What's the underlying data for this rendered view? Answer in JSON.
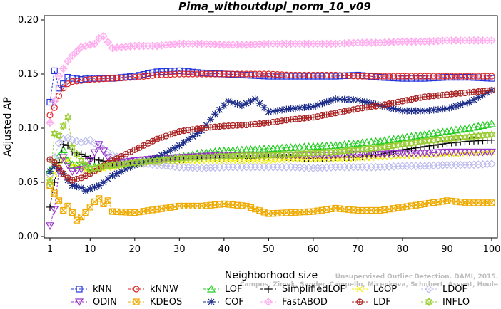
{
  "chart_data": {
    "type": "line",
    "title": "Pima_withoutdupl_norm_10_v09",
    "xlabel": "Neighborhood size",
    "ylabel": "Adjusted AP",
    "xlim": [
      1,
      100
    ],
    "ylim": [
      0.0,
      0.2
    ],
    "x_ticks": [
      "1",
      "10",
      "20",
      "30",
      "40",
      "50",
      "60",
      "70",
      "80",
      "90",
      "100"
    ],
    "y_ticks": [
      "0.00",
      "0.05",
      "0.10",
      "0.15",
      "0.20"
    ],
    "grid": false,
    "legend_position": "bottom",
    "watermark_line1": "Unsupervised Outlier Detection. DAMI, 2015.",
    "watermark_line2": "Campos, Zimek, Sander, Campello, Micenkova, Schubert, Assent, Houle",
    "series": [
      {
        "name": "kNN",
        "color": "#2233dd",
        "marker": "square",
        "x": [
          1,
          2,
          3,
          4,
          5,
          6,
          8,
          10,
          15,
          20,
          25,
          30,
          35,
          40,
          45,
          50,
          55,
          60,
          65,
          70,
          75,
          80,
          85,
          90,
          95,
          100
        ],
        "values": [
          0.124,
          0.153,
          0.137,
          0.141,
          0.147,
          0.146,
          0.145,
          0.146,
          0.146,
          0.148,
          0.152,
          0.153,
          0.151,
          0.15,
          0.149,
          0.148,
          0.148,
          0.148,
          0.148,
          0.149,
          0.147,
          0.146,
          0.146,
          0.147,
          0.147,
          0.146
        ]
      },
      {
        "name": "kNNW",
        "color": "#dd2222",
        "marker": "circle",
        "x": [
          1,
          2,
          3,
          4,
          5,
          6,
          8,
          10,
          15,
          20,
          25,
          30,
          35,
          40,
          45,
          50,
          55,
          60,
          65,
          70,
          75,
          80,
          85,
          90,
          95,
          100
        ],
        "values": [
          0.112,
          0.119,
          0.13,
          0.137,
          0.141,
          0.143,
          0.144,
          0.145,
          0.146,
          0.147,
          0.149,
          0.15,
          0.15,
          0.15,
          0.15,
          0.15,
          0.149,
          0.149,
          0.149,
          0.148,
          0.148,
          0.148,
          0.148,
          0.148,
          0.148,
          0.148
        ]
      },
      {
        "name": "LOF",
        "color": "#22cc22",
        "marker": "triangle-up",
        "x": [
          1,
          2,
          3,
          4,
          5,
          6,
          8,
          10,
          15,
          20,
          25,
          30,
          35,
          40,
          45,
          50,
          55,
          60,
          65,
          70,
          75,
          80,
          85,
          90,
          95,
          100
        ],
        "values": [
          0.061,
          0.065,
          0.074,
          0.08,
          0.07,
          0.066,
          0.065,
          0.064,
          0.066,
          0.068,
          0.071,
          0.073,
          0.077,
          0.079,
          0.08,
          0.081,
          0.082,
          0.083,
          0.084,
          0.086,
          0.088,
          0.091,
          0.094,
          0.097,
          0.1,
          0.104
        ]
      },
      {
        "name": "SimplifiedLOF",
        "color": "#000000",
        "marker": "plus",
        "x": [
          1,
          2,
          3,
          4,
          5,
          6,
          8,
          10,
          15,
          20,
          25,
          30,
          35,
          40,
          45,
          50,
          55,
          60,
          65,
          70,
          75,
          80,
          85,
          90,
          95,
          100
        ],
        "values": [
          0.027,
          0.05,
          0.068,
          0.085,
          0.084,
          0.078,
          0.076,
          0.072,
          0.068,
          0.068,
          0.07,
          0.071,
          0.072,
          0.072,
          0.072,
          0.073,
          0.073,
          0.072,
          0.073,
          0.073,
          0.076,
          0.08,
          0.083,
          0.086,
          0.088,
          0.089
        ]
      },
      {
        "name": "LoOP",
        "color": "#eeee00",
        "marker": "x",
        "x": [
          1,
          2,
          3,
          4,
          5,
          6,
          8,
          10,
          15,
          20,
          25,
          30,
          35,
          40,
          45,
          50,
          55,
          60,
          65,
          70,
          75,
          80,
          85,
          90,
          95,
          100
        ],
        "values": [
          0.052,
          0.058,
          0.066,
          0.072,
          0.07,
          0.066,
          0.063,
          0.06,
          0.064,
          0.066,
          0.068,
          0.069,
          0.07,
          0.07,
          0.07,
          0.07,
          0.071,
          0.071,
          0.071,
          0.072,
          0.073,
          0.074,
          0.075,
          0.076,
          0.077,
          0.078
        ]
      },
      {
        "name": "LDOF",
        "color": "#bbbbee",
        "marker": "diamond",
        "x": [
          1,
          2,
          3,
          4,
          5,
          6,
          8,
          10,
          15,
          20,
          25,
          30,
          35,
          40,
          45,
          50,
          55,
          60,
          65,
          70,
          75,
          80,
          85,
          90,
          95,
          100
        ],
        "values": [
          0.057,
          0.073,
          0.086,
          0.09,
          0.091,
          0.089,
          0.087,
          0.089,
          0.075,
          0.068,
          0.066,
          0.064,
          0.063,
          0.064,
          0.064,
          0.064,
          0.064,
          0.063,
          0.064,
          0.064,
          0.064,
          0.065,
          0.065,
          0.066,
          0.066,
          0.067
        ]
      },
      {
        "name": "ODIN",
        "color": "#9933cc",
        "marker": "triangle-down",
        "x": [
          1,
          2,
          3,
          4,
          5,
          6,
          8,
          10,
          12,
          15,
          20,
          25,
          30,
          35,
          40,
          45,
          50,
          55,
          60,
          65,
          70,
          75,
          80,
          85,
          90,
          95,
          100
        ],
        "values": [
          0.01,
          0.025,
          0.06,
          0.073,
          0.066,
          0.06,
          0.062,
          0.07,
          0.085,
          0.067,
          0.07,
          0.072,
          0.073,
          0.074,
          0.075,
          0.075,
          0.075,
          0.075,
          0.075,
          0.075,
          0.076,
          0.076,
          0.077,
          0.077,
          0.078,
          0.078,
          0.078
        ]
      },
      {
        "name": "KDEOS",
        "color": "#eeaa00",
        "marker": "square-x",
        "x": [
          1,
          2,
          3,
          4,
          5,
          6,
          7,
          8,
          9,
          10,
          11,
          12,
          13,
          14,
          15,
          20,
          25,
          30,
          35,
          40,
          45,
          50,
          55,
          60,
          65,
          70,
          75,
          80,
          85,
          90,
          95,
          100
        ],
        "values": [
          0.047,
          0.04,
          0.033,
          0.024,
          0.028,
          0.022,
          0.015,
          0.018,
          0.022,
          0.027,
          0.032,
          0.035,
          0.03,
          0.033,
          0.023,
          0.022,
          0.025,
          0.028,
          0.028,
          0.03,
          0.028,
          0.021,
          0.022,
          0.023,
          0.026,
          0.024,
          0.024,
          0.027,
          0.03,
          0.033,
          0.031,
          0.031
        ]
      },
      {
        "name": "COF",
        "color": "#1a2a88",
        "marker": "asterisk",
        "x": [
          1,
          2,
          3,
          4,
          5,
          6,
          7,
          8,
          9,
          10,
          12,
          15,
          20,
          25,
          30,
          35,
          38,
          41,
          44,
          47,
          50,
          55,
          60,
          65,
          70,
          75,
          80,
          85,
          90,
          95,
          100
        ],
        "values": [
          0.06,
          0.065,
          0.062,
          0.058,
          0.052,
          0.047,
          0.046,
          0.045,
          0.042,
          0.044,
          0.047,
          0.056,
          0.066,
          0.073,
          0.084,
          0.098,
          0.113,
          0.125,
          0.121,
          0.127,
          0.115,
          0.118,
          0.12,
          0.127,
          0.126,
          0.121,
          0.116,
          0.116,
          0.118,
          0.124,
          0.135
        ]
      },
      {
        "name": "FastABOD",
        "color": "#ffaaee",
        "marker": "diamond-plus",
        "x": [
          1,
          2,
          3,
          4,
          5,
          6,
          8,
          10,
          11,
          12,
          13,
          15,
          20,
          25,
          30,
          35,
          40,
          45,
          50,
          55,
          60,
          65,
          70,
          75,
          80,
          85,
          90,
          95,
          100
        ],
        "values": [
          0.105,
          0.125,
          0.148,
          0.155,
          0.162,
          0.167,
          0.175,
          0.177,
          0.178,
          0.183,
          0.185,
          0.174,
          0.176,
          0.176,
          0.178,
          0.178,
          0.177,
          0.177,
          0.178,
          0.178,
          0.178,
          0.178,
          0.179,
          0.179,
          0.18,
          0.18,
          0.181,
          0.181,
          0.181
        ]
      },
      {
        "name": "LDF",
        "color": "#aa2222",
        "marker": "circle-plus",
        "x": [
          1,
          2,
          3,
          4,
          5,
          6,
          8,
          10,
          15,
          20,
          25,
          30,
          35,
          40,
          45,
          50,
          55,
          60,
          65,
          70,
          75,
          80,
          85,
          90,
          95,
          100
        ],
        "values": [
          0.071,
          0.068,
          0.063,
          0.058,
          0.054,
          0.052,
          0.054,
          0.058,
          0.07,
          0.08,
          0.09,
          0.097,
          0.1,
          0.102,
          0.103,
          0.105,
          0.108,
          0.11,
          0.114,
          0.118,
          0.121,
          0.125,
          0.129,
          0.131,
          0.133,
          0.135
        ]
      },
      {
        "name": "INFLO",
        "color": "#99cc33",
        "marker": "star6",
        "x": [
          1,
          2,
          3,
          4,
          5,
          6,
          8,
          10,
          15,
          20,
          25,
          30,
          35,
          40,
          45,
          50,
          55,
          60,
          65,
          70,
          75,
          80,
          85,
          90,
          95,
          100
        ],
        "values": [
          0.05,
          0.095,
          0.093,
          0.102,
          0.11,
          0.082,
          0.07,
          0.062,
          0.066,
          0.068,
          0.07,
          0.072,
          0.073,
          0.074,
          0.075,
          0.075,
          0.076,
          0.077,
          0.078,
          0.08,
          0.082,
          0.085,
          0.088,
          0.09,
          0.092,
          0.094
        ]
      }
    ]
  }
}
